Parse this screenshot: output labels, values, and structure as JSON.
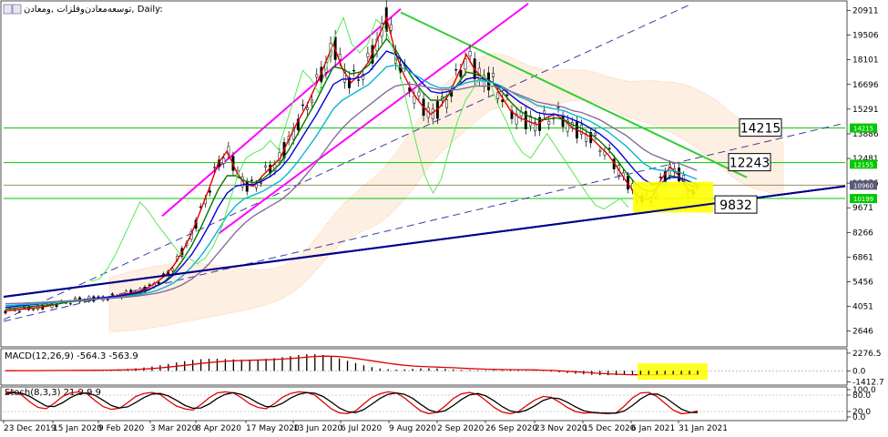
{
  "window": {
    "title": "توسعه‌معادن‌وفلزات ,ومعادن, Daily:",
    "icon_names": [
      "window-icon",
      "chart-type-icon"
    ]
  },
  "chart_data": [
    {
      "type": "line",
      "panel": "main",
      "title": "",
      "y_scale": "linear",
      "ylim": [
        1800,
        21300
      ],
      "y_ticks": [
        "20911",
        "19506",
        "18101",
        "16696",
        "15291",
        "13886",
        "12481",
        "11076",
        "9671",
        "8266",
        "6861",
        "5456",
        "4051",
        "2646"
      ],
      "x_ticks": [
        "23 Dec 2019",
        "15 Jan 2020",
        "9 Feb 2020",
        "3 Mar 2020",
        "8 Apr 2020",
        "17 May 2020",
        "13 Jun 2020",
        "6 Jul 2020",
        "9 Aug 2020",
        "2 Sep 2020",
        "26 Sep 2020",
        "23 Nov 2020",
        "15 Dec 2020",
        "6 Jan 2021",
        "31 Jan 2021"
      ],
      "series": [
        {
          "values": [
            3800,
            3850,
            3900,
            3950,
            4000,
            4100,
            4200,
            4300,
            4400,
            4450,
            4500,
            4550,
            4600,
            4700,
            4800,
            4900,
            5100,
            5400,
            5800,
            6400,
            7200,
            8200,
            9500,
            10800,
            12200,
            12900,
            11800,
            11000,
            10900,
            11500,
            12000,
            12500,
            13600,
            14600,
            15500,
            16600,
            17800,
            19000,
            17600,
            16800,
            17300,
            18000,
            19300,
            20500,
            18500,
            17200,
            16200,
            15500,
            15000,
            15400,
            16100,
            17200,
            18400,
            17500,
            17000,
            16800,
            16000,
            15200,
            14800,
            14600,
            14400,
            14800,
            15000,
            14700,
            14200,
            14000,
            13700,
            13200,
            12700,
            12000,
            11200,
            10500,
            10100,
            10300,
            11300,
            12000,
            11500,
            10700,
            10500
          ]
        },
        {
          "values": [
            3900,
            3950,
            4000,
            4050,
            4100,
            4150,
            4200,
            4300,
            4350,
            4400,
            4450,
            4500,
            4550,
            4600,
            4700,
            4800,
            4950,
            5200,
            5500,
            6000,
            6700,
            7500,
            8500,
            9600,
            10700,
            11500,
            11500,
            11200,
            11100,
            11300,
            11700,
            12200,
            13000,
            13900,
            14800,
            15700,
            16700,
            17700,
            17600,
            17300,
            17400,
            17800,
            18600,
            19300,
            18700,
            17800,
            17000,
            16300,
            15800,
            15800,
            16100,
            16700,
            17400,
            17300,
            17100,
            16800,
            16300,
            15700,
            15200,
            14900,
            14700,
            14700,
            14800,
            14700,
            14400,
            14200,
            13900,
            13500,
            13000,
            12400,
            11700,
            11100,
            10700,
            10600,
            11000,
            11500,
            11400,
            11000,
            10800
          ]
        },
        {
          "values": [
            4000,
            4050,
            4100,
            4150,
            4200,
            4250,
            4300,
            4350,
            4400,
            4450,
            4500,
            4550,
            4600,
            4650,
            4750,
            4850,
            5000,
            5200,
            5450,
            5850,
            6400,
            7000,
            7800,
            8700,
            9700,
            10500,
            10900,
            11000,
            11000,
            11200,
            11500,
            11900,
            12500,
            13300,
            14100,
            14900,
            15800,
            16700,
            17000,
            17000,
            17100,
            17400,
            18000,
            18600,
            18400,
            17900,
            17300,
            16800,
            16300,
            16200,
            16300,
            16600,
            17000,
            17100,
            17000,
            16800,
            16500,
            16100,
            15700,
            15400,
            15100,
            15000,
            15000,
            14900,
            14700,
            14500,
            14200,
            13900,
            13500,
            13000,
            12400,
            11800,
            11300,
            11000,
            11100,
            11400,
            11400,
            11200,
            11000
          ]
        },
        {
          "values": [
            4100,
            4130,
            4160,
            4190,
            4220,
            4260,
            4300,
            4340,
            4380,
            4420,
            4460,
            4500,
            4540,
            4590,
            4650,
            4720,
            4820,
            4950,
            5150,
            5400,
            5800,
            6300,
            6900,
            7600,
            8400,
            9200,
            9800,
            10200,
            10400,
            10600,
            10900,
            11200,
            11700,
            12300,
            13000,
            13700,
            14500,
            15300,
            15800,
            16100,
            16400,
            16700,
            17200,
            17700,
            17800,
            17600,
            17300,
            17000,
            16700,
            16500,
            16500,
            16600,
            16800,
            16900,
            16900,
            16800,
            16600,
            16300,
            16000,
            15800,
            15500,
            15400,
            15300,
            15200,
            15000,
            14800,
            14600,
            14300,
            14000,
            13600,
            13200,
            12700,
            12200,
            11900,
            11800,
            11800,
            11700,
            11500,
            11300
          ]
        },
        {
          "values": [
            4200,
            4220,
            4240,
            4260,
            4280,
            4310,
            4340,
            4370,
            4400,
            4430,
            4460,
            4490,
            4520,
            4560,
            4600,
            4650,
            4720,
            4800,
            4920,
            5080,
            5300,
            5600,
            6000,
            6500,
            7100,
            7700,
            8300,
            8800,
            9200,
            9500,
            9800,
            10100,
            10500,
            11000,
            11600,
            12200,
            12900,
            13600,
            14200,
            14700,
            15100,
            15500,
            15900,
            16300,
            16600,
            16700,
            16700,
            16600,
            16500,
            16400,
            16400,
            16400,
            16500,
            16600,
            16600,
            16600,
            16500,
            16300,
            16100,
            15900,
            15700,
            15600,
            15500,
            15400,
            15200,
            15100,
            14900,
            14700,
            14400,
            14100,
            13800,
            13400,
            13000,
            12700,
            12500,
            12300,
            12200,
            12000,
            11800
          ]
        },
        {
          "values": [
            5500,
            5600,
            6200,
            7000,
            8000,
            9000,
            10000,
            9500,
            8800,
            8200,
            7600,
            7000,
            6800,
            6500,
            6800,
            7500,
            8500,
            10000,
            11500,
            12500,
            12800,
            13000,
            13500,
            13000,
            14500,
            16000,
            17500,
            17000,
            16200,
            17800,
            19500,
            20500,
            19000,
            18500,
            19000,
            20400,
            20000,
            18800,
            17200,
            15200,
            13200,
            11500,
            10500,
            11300,
            13000,
            14600,
            15800,
            16500,
            17200,
            16800,
            15500,
            14600,
            13500,
            12800,
            12500,
            13200,
            13900,
            13200,
            12500,
            11800,
            11100,
            10400,
            9800,
            9600,
            9900,
            10200,
            9700
          ]
        }
      ],
      "horizontal_levels": [
        14215,
        12243,
        10960,
        10199,
        9832
      ],
      "level_tags": [
        "14215",
        "12243",
        "9832"
      ],
      "price_tags": [
        "14215",
        "12155",
        "10960",
        "10199"
      ],
      "colors": {
        "background": "#ffffff",
        "green_level": "#00c800",
        "navy_trend": "#00008b",
        "magenta_channel": "#ff00ff",
        "green_trend": "#32cd32",
        "dashed_trend": "#3c3ca0",
        "price_line": "#9c8f64",
        "ichimoku_cloud": "#f4a460",
        "chikou": "#5ae65a",
        "ma_red": "#e00000",
        "ma_green": "#007800",
        "ma_blue": "#0000dc",
        "ma_cyan": "#0ab4d2",
        "highlight": "#ffff00",
        "candle": "#000000"
      }
    },
    {
      "type": "bar",
      "panel": "macd",
      "title": "MACD(12,26,9) -564.3 -563.9",
      "y_scale": "linear",
      "ylim": [
        -1600,
        2500
      ],
      "y_ticks": [
        "2276.5",
        "0.0",
        "-1412.7"
      ],
      "values": [
        20,
        25,
        30,
        35,
        40,
        45,
        50,
        60,
        70,
        80,
        90,
        100,
        120,
        150,
        190,
        250,
        330,
        430,
        560,
        720,
        900,
        1080,
        1250,
        1400,
        1500,
        1560,
        1560,
        1530,
        1480,
        1450,
        1440,
        1470,
        1540,
        1640,
        1760,
        1900,
        2030,
        2130,
        2150,
        2050,
        1850,
        1600,
        1300,
        1000,
        720,
        480,
        300,
        200,
        170,
        200,
        260,
        320,
        340,
        310,
        250,
        190,
        140,
        100,
        80,
        70,
        90,
        110,
        120,
        100,
        60,
        20,
        -40,
        -110,
        -190,
        -280,
        -370,
        -450,
        -520,
        -560,
        -570,
        -560,
        -530,
        -500,
        -490,
        -480,
        -470,
        -465,
        -460,
        -462,
        -460,
        -463
      ],
      "signal": [
        20,
        22,
        25,
        28,
        32,
        36,
        40,
        46,
        53,
        60,
        68,
        76,
        85,
        98,
        115,
        142,
        180,
        230,
        300,
        380,
        480,
        590,
        710,
        830,
        950,
        1060,
        1150,
        1230,
        1290,
        1330,
        1360,
        1390,
        1420,
        1460,
        1520,
        1590,
        1670,
        1760,
        1840,
        1890,
        1880,
        1830,
        1730,
        1600,
        1450,
        1290,
        1130,
        980,
        840,
        720,
        630,
        570,
        520,
        480,
        440,
        400,
        350,
        300,
        260,
        220,
        190,
        170,
        160,
        150,
        140,
        120,
        90,
        50,
        0,
        -60,
        -120,
        -180,
        -250,
        -320,
        -380,
        -430,
        -470,
        -495,
        -505,
        -508,
        -505,
        -500,
        -495,
        -490,
        -486,
        -483
      ]
    },
    {
      "type": "line",
      "panel": "stochastic",
      "title": "Stoch(8,3,3) 21.9 9.9",
      "y_scale": "linear",
      "ylim": [
        0,
        100
      ],
      "y_ticks": [
        "100.0",
        "80.0",
        "20.0",
        "0.0"
      ],
      "series": [
        {
          "values": [
            90,
            92,
            80,
            55,
            35,
            30,
            50,
            75,
            88,
            92,
            85,
            60,
            38,
            28,
            32,
            52,
            75,
            86,
            90,
            82,
            60,
            40,
            30,
            25,
            45,
            70,
            88,
            92,
            88,
            70,
            48,
            35,
            30,
            48,
            72,
            86,
            92,
            90,
            80,
            55,
            30,
            15,
            12,
            22,
            48,
            72,
            85,
            92,
            88,
            70,
            45,
            22,
            12,
            18,
            40,
            68,
            85,
            90,
            82,
            60,
            35,
            18,
            12,
            20,
            42,
            62,
            75,
            72,
            55,
            35,
            20,
            14,
            16,
            14,
            12,
            15,
            40,
            70,
            88,
            90,
            75,
            50,
            25,
            12,
            15,
            22
          ]
        },
        {
          "values": [
            85,
            89,
            87,
            75,
            57,
            40,
            38,
            52,
            71,
            85,
            88,
            79,
            61,
            42,
            33,
            37,
            53,
            71,
            84,
            86,
            77,
            61,
            43,
            32,
            33,
            47,
            68,
            83,
            89,
            82,
            69,
            51,
            38,
            38,
            50,
            69,
            83,
            89,
            87,
            75,
            55,
            33,
            19,
            16,
            27,
            47,
            68,
            83,
            88,
            83,
            68,
            46,
            26,
            17,
            23,
            42,
            64,
            81,
            86,
            77,
            59,
            38,
            22,
            17,
            25,
            41,
            60,
            70,
            67,
            54,
            37,
            23,
            17,
            15,
            14,
            14,
            22,
            42,
            66,
            83,
            84,
            72,
            50,
            29,
            17,
            16
          ]
        }
      ]
    }
  ]
}
